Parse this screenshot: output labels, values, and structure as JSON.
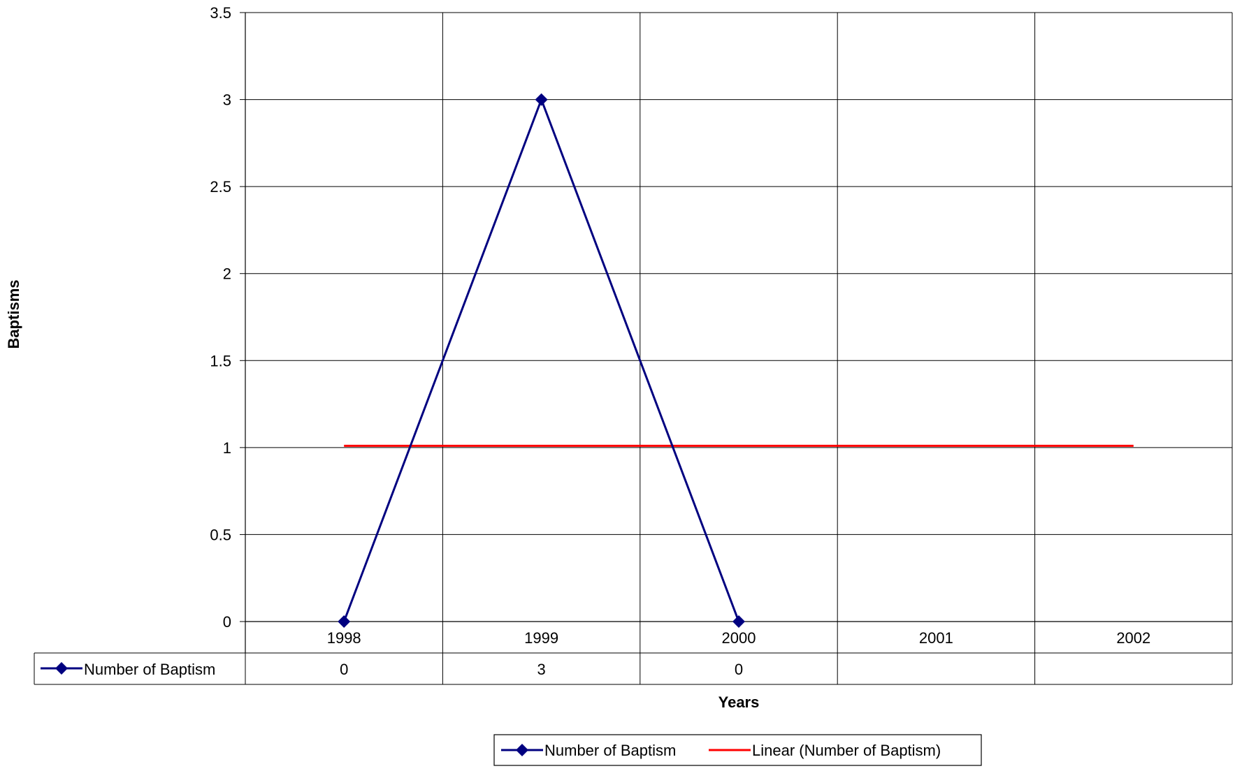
{
  "chart_data": {
    "type": "line",
    "categories": [
      "1998",
      "1999",
      "2000",
      "2001",
      "2002"
    ],
    "series": [
      {
        "name": "Number of Baptism",
        "values": [
          0,
          3,
          0,
          null,
          null
        ],
        "color": "#000080",
        "marker": "diamond"
      }
    ],
    "trendline": {
      "name": "Linear (Number of Baptism)",
      "type": "linear",
      "values": [
        1.01,
        1.01,
        1.01,
        1.01,
        1.01
      ],
      "color": "#ff0000"
    },
    "data_table": {
      "row_label": "Number of Baptism",
      "cells": [
        "0",
        "3",
        "0",
        "",
        ""
      ]
    },
    "y_ticks": [
      "0",
      "0.5",
      "1",
      "1.5",
      "2",
      "2.5",
      "3",
      "3.5"
    ],
    "xlabel": "Years",
    "ylabel": "Baptisms",
    "ylim": [
      0,
      3.5
    ],
    "grid": true,
    "legend": {
      "position": "bottom",
      "entries": [
        "Number of Baptism",
        "Linear (Number of Baptism)"
      ]
    }
  }
}
